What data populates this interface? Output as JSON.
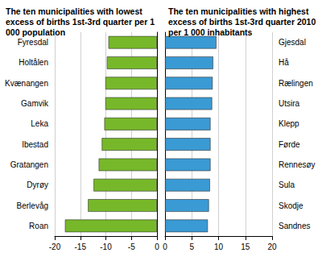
{
  "chart_data": [
    {
      "type": "bar",
      "orientation": "horizontal",
      "title": "The ten municipalities with lowest excess of births 1st-3rd quarter per 1 000 population",
      "categories": [
        "Fyresdal",
        "Holtålen",
        "Kvænangen",
        "Gamvik",
        "Leka",
        "Ibestad",
        "Gratangen",
        "Dyrøy",
        "Berlevåg",
        "Roan"
      ],
      "values": [
        -9.5,
        -9.8,
        -10.1,
        -10.1,
        -10.3,
        -10.8,
        -11.4,
        -12.4,
        -13.5,
        -18.0
      ],
      "color": "#77b82a",
      "xlim": [
        -20,
        0
      ],
      "xticks": [
        -20,
        -15,
        -10,
        -5,
        0
      ],
      "grid": true
    },
    {
      "type": "bar",
      "orientation": "horizontal",
      "title": "The ten municipalities with highest excess of births 1st-3rd quarter 2010 per 1 000 inhabitants",
      "categories": [
        "Gjesdal",
        "Hå",
        "Rælingen",
        "Utsira",
        "Klepp",
        "Førde",
        "Rennesøy",
        "Sula",
        "Skodje",
        "Sandnes"
      ],
      "values": [
        9.6,
        9.0,
        8.9,
        8.8,
        8.5,
        8.5,
        8.5,
        8.4,
        8.2,
        8.0
      ],
      "color": "#3a9ad4",
      "xlim": [
        0,
        20
      ],
      "xticks": [
        0,
        5,
        10,
        15,
        20
      ],
      "grid": true
    }
  ]
}
